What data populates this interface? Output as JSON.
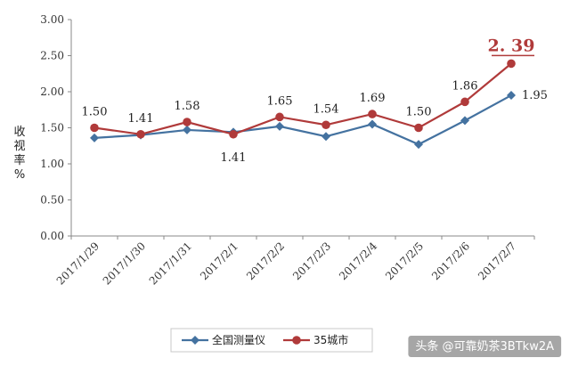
{
  "chart_data": {
    "type": "line",
    "ylabel": "收视率%",
    "ylim": [
      0,
      3
    ],
    "yticks": [
      "0.00",
      "0.50",
      "1.00",
      "1.50",
      "2.00",
      "2.50",
      "3.00"
    ],
    "categories": [
      "2017/1/29",
      "2017/1/30",
      "2017/1/31",
      "2017/2/1",
      "2017/2/2",
      "2017/2/3",
      "2017/2/4",
      "2017/2/5",
      "2017/2/6",
      "2017/2/7"
    ],
    "series": [
      {
        "name": "全国测量仪",
        "color": "#4472a0",
        "marker": "diamond",
        "values": [
          1.36,
          1.4,
          1.47,
          1.44,
          1.52,
          1.38,
          1.55,
          1.27,
          1.6,
          1.95
        ],
        "labels": [
          "",
          "",
          "",
          "",
          "",
          "",
          "",
          "",
          "",
          "1.95"
        ]
      },
      {
        "name": "35城市",
        "color": "#b03a3a",
        "marker": "circle",
        "values": [
          1.5,
          1.41,
          1.58,
          1.41,
          1.65,
          1.54,
          1.69,
          1.5,
          1.86,
          2.39
        ],
        "labels": [
          "1.50",
          "1.41",
          "1.58",
          "1.41",
          "1.65",
          "1.54",
          "1.69",
          "1.50",
          "1.86",
          "2. 39"
        ]
      }
    ],
    "grid": false,
    "legend": "bottom"
  },
  "watermark": "头条 @可靠奶茶3BTkw2A"
}
